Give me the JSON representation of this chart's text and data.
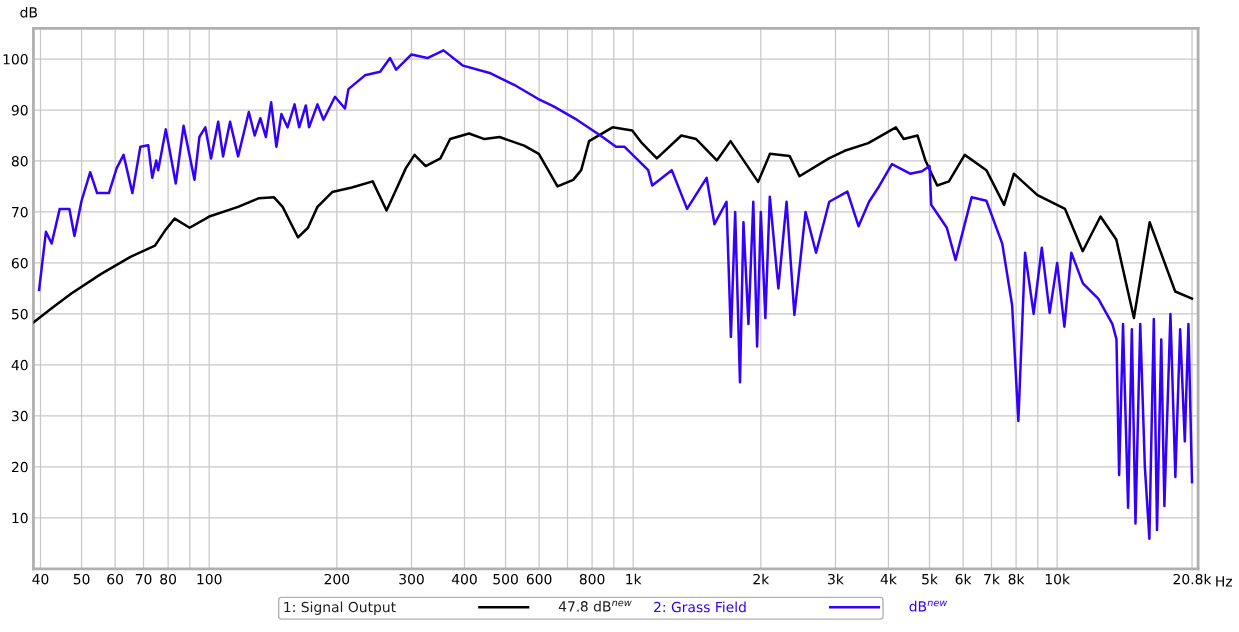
{
  "chart_data": {
    "type": "line",
    "xlabel": "Hz",
    "ylabel": "dB",
    "log": "x",
    "grid": true,
    "legend": "bottom",
    "line_style": "solid",
    "marker": "none",
    "xlim": [
      38.5,
      21500
    ],
    "ylim": [
      0,
      106
    ],
    "xticks": [
      40,
      50,
      60,
      70,
      80,
      {
        "value": 90,
        "label": null
      },
      100,
      200,
      300,
      400,
      500,
      600,
      {
        "value": 700,
        "label": null
      },
      800,
      {
        "value": 900,
        "label": null
      },
      {
        "value": 1000,
        "label": "1k"
      },
      {
        "value": 2000,
        "label": "2k"
      },
      {
        "value": 3000,
        "label": "3k"
      },
      {
        "value": 4000,
        "label": "4k"
      },
      {
        "value": 5000,
        "label": "5k"
      },
      {
        "value": 6000,
        "label": "6k"
      },
      {
        "value": 7000,
        "label": "7k"
      },
      {
        "value": 8000,
        "label": "8k"
      },
      {
        "value": 9000,
        "label": null
      },
      {
        "value": 10000,
        "label": "10k"
      },
      {
        "value": 20800,
        "label": "20.8k"
      }
    ],
    "yticks": [
      10,
      20,
      30,
      40,
      50,
      60,
      70,
      80,
      90,
      100
    ],
    "annotations": [
      "47.8 dB$^{new}$",
      "dB$^{new}$"
    ],
    "series": [
      {
        "name": "1: Signal Output",
        "color": "#000000",
        "x": [
          38.5,
          42.5,
          47.3,
          55.5,
          65.2,
          74.5,
          78.6,
          82.9,
          89.9,
          100,
          117,
          131,
          142,
          149,
          162,
          171,
          180,
          195,
          217,
          243,
          262,
          291,
          305,
          324,
          351,
          370,
          410,
          446,
          484,
          553,
          599,
          663,
          722,
          754,
          787,
          894,
          995,
          1049,
          1137,
          1299,
          1408,
          1575,
          1697,
          1971,
          2102,
          2338,
          2467,
          2895,
          3154,
          3585,
          4165,
          4346,
          4683,
          4889,
          5212,
          5556,
          6053,
          6808,
          7495,
          7907,
          8985,
          10437,
          11490,
          12653,
          13786,
          15171,
          16526,
          18985,
          20800
        ],
        "values": [
          48.3,
          51.1,
          54,
          57.8,
          61.2,
          63.4,
          66.3,
          68.7,
          66.9,
          69.1,
          71,
          72.7,
          72.9,
          71,
          65,
          66.9,
          71,
          73.9,
          74.8,
          76,
          70.3,
          78.6,
          81.2,
          79,
          80.5,
          84.3,
          85.4,
          84.3,
          84.7,
          83,
          81.4,
          75,
          76.3,
          78.2,
          83.9,
          86.6,
          86,
          83.5,
          80.5,
          85,
          84.3,
          80.1,
          83.9,
          75.9,
          81.4,
          81,
          77,
          80.5,
          82,
          83.5,
          86.6,
          84.3,
          85,
          80.1,
          75.2,
          76,
          81.2,
          78.2,
          71.4,
          77.5,
          73.3,
          70.6,
          62.3,
          69.1,
          64.6,
          49.2,
          68,
          54.4,
          53
        ]
      },
      {
        "name": "2: Grass Field",
        "color": "#3300ff",
        "x": [
          39.7,
          41.2,
          42.5,
          44.4,
          46.8,
          48.1,
          50,
          52.4,
          54.4,
          58,
          60.5,
          62.8,
          65.9,
          68.8,
          71.8,
          73.4,
          75,
          75.8,
          79,
          83.4,
          87,
          92.3,
          94.8,
          97.9,
          101,
          105,
          107.8,
          112,
          117,
          124,
          128,
          132,
          136,
          140,
          144,
          148,
          153,
          159,
          163,
          169,
          172,
          180,
          186,
          198,
          209,
          213,
          233,
          253,
          267,
          276,
          300,
          327,
          357,
          397,
          461,
          525,
          596,
          649,
          736,
          837,
          911,
          953,
          1085,
          1109,
          1233,
          1340,
          1490,
          1555,
          1660,
          1700,
          1740,
          1786,
          1820,
          1870,
          1920,
          1960,
          2000,
          2050,
          2100,
          2200,
          2300,
          2400,
          2550,
          2700,
          2900,
          3200,
          3400,
          3600,
          3800,
          4076,
          4500,
          4800,
          5000,
          5046,
          5492,
          5759,
          6285,
          6808,
          7421,
          7830,
          8100,
          8400,
          8800,
          9200,
          9600,
          10000,
          10400,
          10800,
          11500,
          12500,
          13500,
          13800,
          14000,
          14300,
          14700,
          15000,
          15300,
          15700,
          16100,
          16500,
          16900,
          17200,
          17600,
          17900,
          18500,
          19000,
          19500,
          20000,
          20400,
          20800
        ],
        "values": [
          54.7,
          66.1,
          63.8,
          70.6,
          70.6,
          65.3,
          72.2,
          77.8,
          73.7,
          73.7,
          78.6,
          81.2,
          73.7,
          82.8,
          83.1,
          76.7,
          80.1,
          78.2,
          86.2,
          75.6,
          86.9,
          76.3,
          84.7,
          86.6,
          80.5,
          87.7,
          80.9,
          87.7,
          80.9,
          89.6,
          85,
          88.4,
          84.7,
          91.5,
          82.8,
          89.2,
          86.6,
          91.1,
          86.6,
          90.9,
          86.6,
          91.1,
          88.1,
          92.6,
          90.3,
          94.1,
          96.8,
          97.5,
          100.2,
          97.9,
          100.9,
          100.2,
          101.7,
          98.7,
          97.2,
          94.9,
          92.2,
          90.7,
          88.1,
          85,
          82.8,
          82.8,
          78.2,
          75.2,
          78.2,
          70.6,
          76.7,
          67.6,
          72,
          45.5,
          70,
          36.6,
          68,
          48,
          72,
          43.6,
          70,
          49.2,
          73,
          55,
          72,
          49.8,
          70,
          62,
          72,
          74,
          67.2,
          72,
          75,
          79.4,
          77.5,
          78,
          79,
          71.4,
          66.9,
          60.6,
          72.9,
          72.2,
          63.8,
          51.7,
          29,
          62,
          50,
          63,
          50.2,
          60,
          47.5,
          62,
          56,
          53,
          48,
          45,
          18.4,
          48,
          12,
          47,
          8.9,
          48,
          20,
          5.9,
          49,
          7.6,
          45,
          12.3,
          50,
          18,
          47,
          25,
          48,
          17
        ]
      }
    ]
  }
}
